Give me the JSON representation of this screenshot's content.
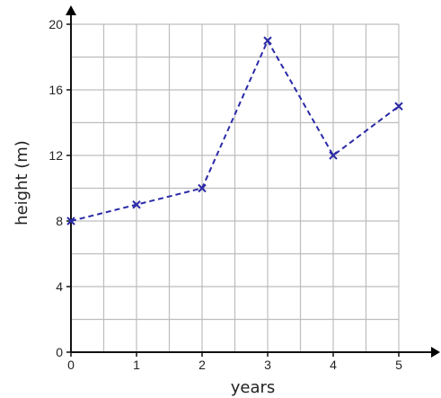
{
  "chart_data": {
    "type": "line",
    "title": "",
    "xlabel": "years",
    "ylabel": "height (m)",
    "xlim": [
      0,
      5
    ],
    "ylim": [
      0,
      20
    ],
    "x_ticks": [
      "0",
      "1",
      "2",
      "3",
      "4",
      "5"
    ],
    "y_ticks": [
      "0",
      "4",
      "8",
      "12",
      "16",
      "20"
    ],
    "grid": true,
    "legend": "none",
    "series": [
      {
        "x": [
          0,
          1,
          2,
          3,
          4,
          5
        ],
        "values": [
          8,
          9,
          10,
          19,
          12,
          15
        ],
        "color": "#2b2ba8",
        "line_style": "dashed",
        "marker": "x"
      }
    ]
  }
}
